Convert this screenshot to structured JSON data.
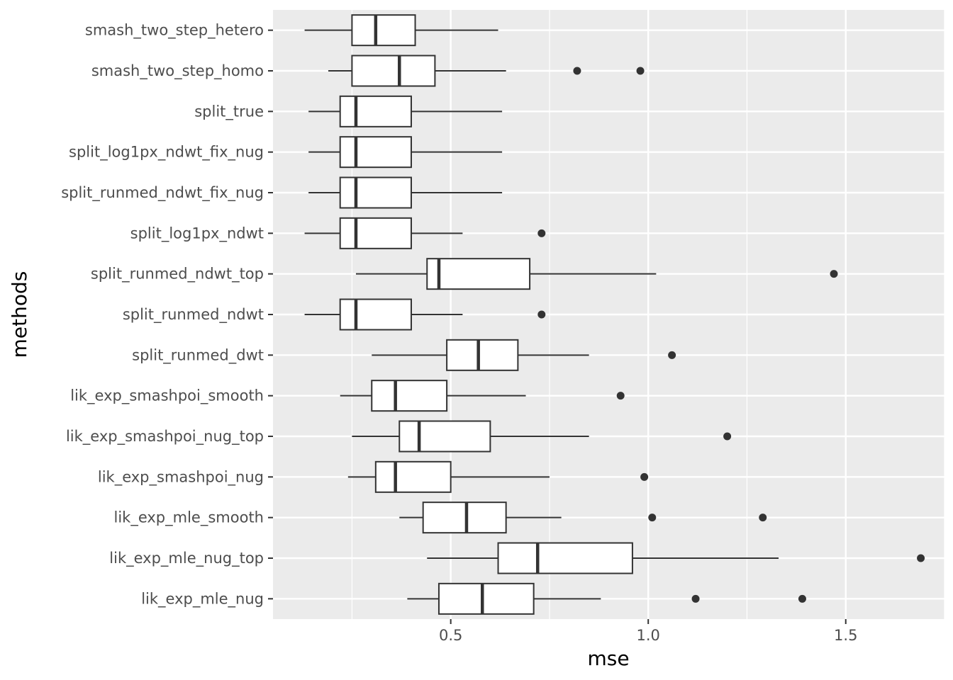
{
  "chart_data": {
    "type": "boxplot",
    "title": "",
    "xlabel": "mse",
    "ylabel": "methods",
    "xlim": [
      0.05,
      1.75
    ],
    "x_ticks": [
      0.5,
      1.0,
      1.5
    ],
    "x_tick_labels": [
      "0.5",
      "1.0",
      "1.5"
    ],
    "grid": true,
    "categories": [
      "smash_two_step_hetero",
      "smash_two_step_homo",
      "split_true",
      "split_log1px_ndwt_fix_nug",
      "split_runmed_ndwt_fix_nug",
      "split_log1px_ndwt",
      "split_runmed_ndwt_top",
      "split_runmed_ndwt",
      "split_runmed_dwt",
      "lik_exp_smashpoi_smooth",
      "lik_exp_smashpoi_nug_top",
      "lik_exp_smashpoi_nug",
      "lik_exp_mle_smooth",
      "lik_exp_mle_nug_top",
      "lik_exp_mle_nug"
    ],
    "boxes": [
      {
        "whisker_low": 0.13,
        "q1": 0.25,
        "median": 0.31,
        "q3": 0.41,
        "whisker_high": 0.62,
        "outliers": []
      },
      {
        "whisker_low": 0.19,
        "q1": 0.25,
        "median": 0.37,
        "q3": 0.46,
        "whisker_high": 0.64,
        "outliers": [
          0.82,
          0.98
        ]
      },
      {
        "whisker_low": 0.14,
        "q1": 0.22,
        "median": 0.26,
        "q3": 0.4,
        "whisker_high": 0.63,
        "outliers": []
      },
      {
        "whisker_low": 0.14,
        "q1": 0.22,
        "median": 0.26,
        "q3": 0.4,
        "whisker_high": 0.63,
        "outliers": []
      },
      {
        "whisker_low": 0.14,
        "q1": 0.22,
        "median": 0.26,
        "q3": 0.4,
        "whisker_high": 0.63,
        "outliers": []
      },
      {
        "whisker_low": 0.13,
        "q1": 0.22,
        "median": 0.26,
        "q3": 0.4,
        "whisker_high": 0.53,
        "outliers": [
          0.73
        ]
      },
      {
        "whisker_low": 0.26,
        "q1": 0.44,
        "median": 0.47,
        "q3": 0.7,
        "whisker_high": 1.02,
        "outliers": [
          1.47
        ]
      },
      {
        "whisker_low": 0.13,
        "q1": 0.22,
        "median": 0.26,
        "q3": 0.4,
        "whisker_high": 0.53,
        "outliers": [
          0.73
        ]
      },
      {
        "whisker_low": 0.3,
        "q1": 0.49,
        "median": 0.57,
        "q3": 0.67,
        "whisker_high": 0.85,
        "outliers": [
          1.06
        ]
      },
      {
        "whisker_low": 0.22,
        "q1": 0.3,
        "median": 0.36,
        "q3": 0.49,
        "whisker_high": 0.69,
        "outliers": [
          0.93
        ]
      },
      {
        "whisker_low": 0.25,
        "q1": 0.37,
        "median": 0.42,
        "q3": 0.6,
        "whisker_high": 0.85,
        "outliers": [
          1.2
        ]
      },
      {
        "whisker_low": 0.24,
        "q1": 0.31,
        "median": 0.36,
        "q3": 0.5,
        "whisker_high": 0.75,
        "outliers": [
          0.99
        ]
      },
      {
        "whisker_low": 0.37,
        "q1": 0.43,
        "median": 0.54,
        "q3": 0.64,
        "whisker_high": 0.78,
        "outliers": [
          1.01,
          1.29
        ]
      },
      {
        "whisker_low": 0.44,
        "q1": 0.62,
        "median": 0.72,
        "q3": 0.96,
        "whisker_high": 1.33,
        "outliers": [
          1.69
        ]
      },
      {
        "whisker_low": 0.39,
        "q1": 0.47,
        "median": 0.58,
        "q3": 0.71,
        "whisker_high": 0.88,
        "outliers": [
          1.12,
          1.39
        ]
      }
    ]
  }
}
